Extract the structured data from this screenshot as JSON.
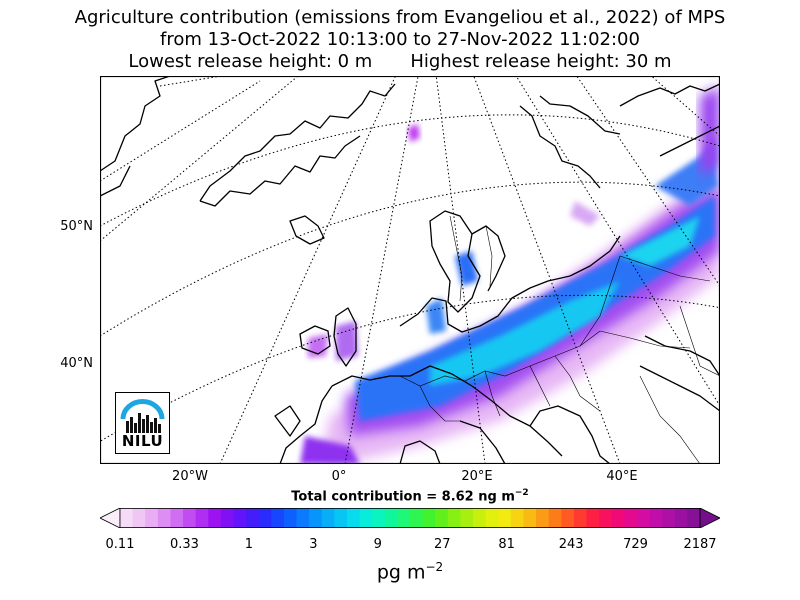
{
  "title": {
    "line1": "Agriculture contribution (emissions from Evangeliou et al., 2022) of MPS",
    "line2": "from 13-Oct-2022 10:13:00 to 27-Nov-2022 11:02:00",
    "lowest": "Lowest release height: 0 m",
    "highest": "Highest release height: 30 m"
  },
  "map": {
    "lat_labels": [
      "50°N",
      "40°N"
    ],
    "lon_labels": [
      "20°W",
      "0°",
      "20°E",
      "40°E"
    ],
    "logo_text": "NILU"
  },
  "total": {
    "text": "Total contribution = 8.62 ng m",
    "exp": "−2"
  },
  "colorbar": {
    "ticks": [
      "0.11",
      "0.33",
      "1",
      "3",
      "9",
      "27",
      "81",
      "243",
      "729",
      "2187"
    ],
    "unit": "pg m",
    "unit_exp": "−2",
    "colors": [
      "#fbeefb",
      "#f6dbf6",
      "#f0c6f5",
      "#e8adf3",
      "#de8ef2",
      "#d06ef2",
      "#c04cf2",
      "#b02df2",
      "#9c13f2",
      "#8210f5",
      "#6414f8",
      "#461cfb",
      "#2a2bfd",
      "#1846fe",
      "#0e60fe",
      "#0a7bfd",
      "#0895fb",
      "#08aef8",
      "#08c6f4",
      "#08dbee",
      "#08ecdc",
      "#0af4bf",
      "#10f79b",
      "#1ef777",
      "#2ef552",
      "#42f22e",
      "#62f01c",
      "#86ef14",
      "#a8ee10",
      "#c8ef0e",
      "#e2f00e",
      "#f2ea10",
      "#f7d412",
      "#f9ba14",
      "#fb9c16",
      "#fd7c1a",
      "#fe5a22",
      "#ff3a30",
      "#fe1f44",
      "#f9105e",
      "#f00a78",
      "#e40a90",
      "#d40ca2",
      "#c20ea8",
      "#ae10a6",
      "#9a10a0",
      "#861096",
      "#740f8a"
    ]
  }
}
